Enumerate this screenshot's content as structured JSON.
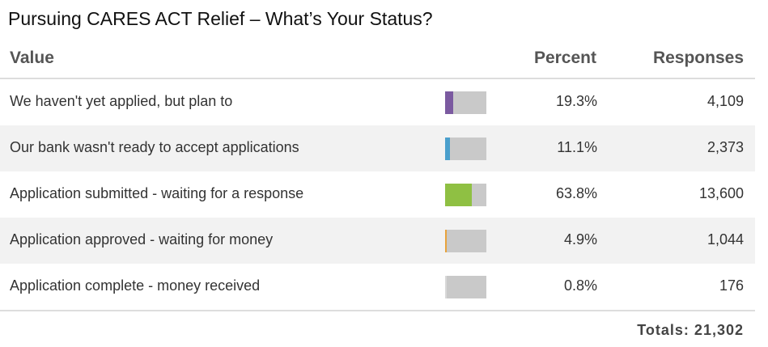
{
  "title": "Pursuing CARES ACT Relief – What’s Your Status?",
  "headers": {
    "value": "Value",
    "percent": "Percent",
    "responses": "Responses"
  },
  "chart_data": {
    "type": "table",
    "title": "Pursuing CARES ACT Relief – What’s Your Status?",
    "columns": [
      "Value",
      "Percent",
      "Responses"
    ],
    "rows": [
      {
        "label": "We haven't yet applied, but plan to",
        "percent": 19.3,
        "percent_text": "19.3%",
        "responses": "4,109",
        "color": "#7b5aa0"
      },
      {
        "label": "Our bank wasn't ready to accept applications",
        "percent": 11.1,
        "percent_text": "11.1%",
        "responses": "2,373",
        "color": "#4a9fcc"
      },
      {
        "label": "Application submitted - waiting for a response",
        "percent": 63.8,
        "percent_text": "63.8%",
        "responses": "13,600",
        "color": "#8fc043"
      },
      {
        "label": "Application approved - waiting for money",
        "percent": 4.9,
        "percent_text": "4.9%",
        "responses": "1,044",
        "color": "#e8a33c"
      },
      {
        "label": "Application complete - money received",
        "percent": 0.8,
        "percent_text": "0.8%",
        "responses": "176",
        "color": "#d9d9d9"
      }
    ],
    "totals_text": "Totals: 21,302"
  }
}
